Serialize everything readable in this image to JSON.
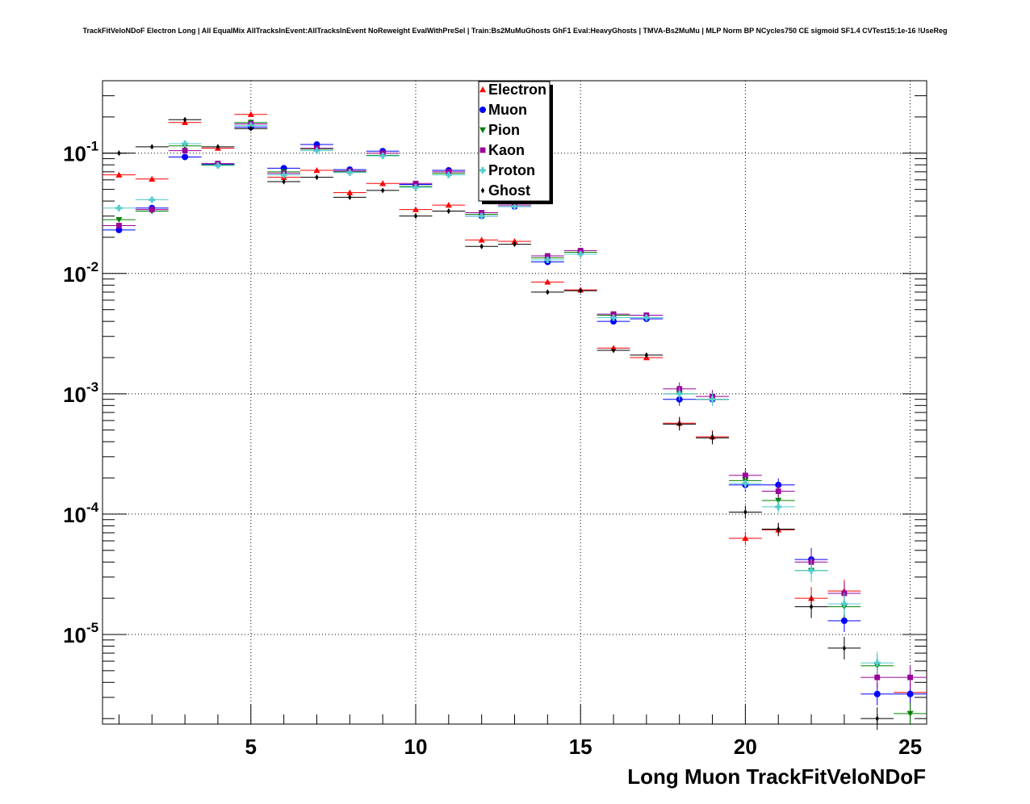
{
  "chart_data": {
    "type": "scatter",
    "title": "TrackFitVeloNDoF Electron Long | All EqualMix AllTracksInEvent:AllTracksInEvent NoReweight EvalWithPreSel | Train:Bs2MuMuGhosts GhF1 Eval:HeavyGhosts | TMVA-Bs2MuMu | MLP Norm BP NCycles750 CE sigmoid SF1.4 CVTest15:1e-16 !UseReg",
    "xlabel": "Long Muon TrackFitVeloNDoF",
    "ylabel": "",
    "xlim": [
      0.5,
      25.5
    ],
    "ylim": [
      1.8e-06,
      0.4
    ],
    "yscale": "log",
    "grid": true,
    "legend_position": "top-center",
    "x_ticks": [
      5,
      10,
      15,
      20,
      25
    ],
    "y_ticks": [
      {
        "value": 1e-05,
        "base": "10",
        "exp": "-5"
      },
      {
        "value": 0.0001,
        "base": "10",
        "exp": "-4"
      },
      {
        "value": 0.001,
        "base": "10",
        "exp": "-3"
      },
      {
        "value": 0.01,
        "base": "10",
        "exp": "-2"
      },
      {
        "value": 0.1,
        "base": "10",
        "exp": "-1"
      }
    ],
    "x": [
      1,
      2,
      3,
      4,
      5,
      6,
      7,
      8,
      9,
      10,
      11,
      12,
      13,
      14,
      15,
      16,
      17,
      18,
      19,
      20,
      21,
      22,
      23,
      24,
      25
    ],
    "series": [
      {
        "name": "Electron",
        "color": "#ff0000",
        "marker": "triangle-up",
        "values": [
          0.066,
          0.061,
          0.18,
          0.11,
          0.21,
          0.063,
          0.072,
          0.047,
          0.056,
          0.034,
          0.037,
          0.019,
          0.0185,
          0.0085,
          0.0073,
          0.0024,
          0.002,
          0.00057,
          0.00044,
          6.3e-05,
          7.4e-05,
          2e-05,
          2.3e-05,
          null,
          3.3e-06
        ]
      },
      {
        "name": "Muon",
        "color": "#0000ff",
        "marker": "circle",
        "values": [
          0.023,
          0.035,
          0.093,
          0.081,
          0.165,
          0.075,
          0.118,
          0.073,
          0.104,
          0.055,
          0.072,
          0.03,
          0.036,
          0.0125,
          0.015,
          0.004,
          0.0042,
          0.0009,
          0.0009,
          0.000175,
          0.000175,
          4.2e-05,
          1.3e-05,
          3.2e-06,
          3.2e-06
        ]
      },
      {
        "name": "Pion",
        "color": "#008000",
        "marker": "triangle-down",
        "values": [
          0.028,
          0.033,
          0.115,
          0.08,
          0.18,
          0.07,
          0.108,
          0.07,
          0.096,
          0.053,
          0.068,
          0.031,
          0.038,
          0.0135,
          0.015,
          0.0045,
          0.0043,
          0.001,
          0.0009,
          0.00019,
          0.00013,
          3.4e-05,
          1.7e-05,
          5.5e-06,
          2.2e-06
        ]
      },
      {
        "name": "Kaon",
        "color": "#990099",
        "marker": "square",
        "values": [
          0.025,
          0.034,
          0.105,
          0.082,
          0.175,
          0.068,
          0.11,
          0.071,
          0.1,
          0.056,
          0.07,
          0.032,
          0.037,
          0.014,
          0.0155,
          0.0046,
          0.0045,
          0.0011,
          0.00095,
          0.00021,
          0.000155,
          4e-05,
          2.2e-05,
          4.4e-06,
          4.4e-06
        ]
      },
      {
        "name": "Proton",
        "color": "#55cccc",
        "marker": "cross",
        "values": [
          0.035,
          0.041,
          0.12,
          0.079,
          0.17,
          0.066,
          0.105,
          0.069,
          0.095,
          0.052,
          0.066,
          0.03,
          0.036,
          0.013,
          0.0145,
          0.0043,
          0.0043,
          0.001,
          0.0009,
          0.00018,
          0.000115,
          3.4e-05,
          1.8e-05,
          5.8e-06,
          null
        ]
      },
      {
        "name": "Ghost",
        "color": "#000000",
        "marker": "diamond",
        "values": [
          0.1,
          0.113,
          0.19,
          0.113,
          0.16,
          0.058,
          0.063,
          0.043,
          0.049,
          0.03,
          0.033,
          0.0168,
          0.0175,
          0.007,
          0.0072,
          0.0023,
          0.0021,
          0.00056,
          0.00043,
          0.000104,
          7.5e-05,
          1.7e-05,
          7.7e-06,
          2e-06,
          null
        ]
      }
    ]
  }
}
